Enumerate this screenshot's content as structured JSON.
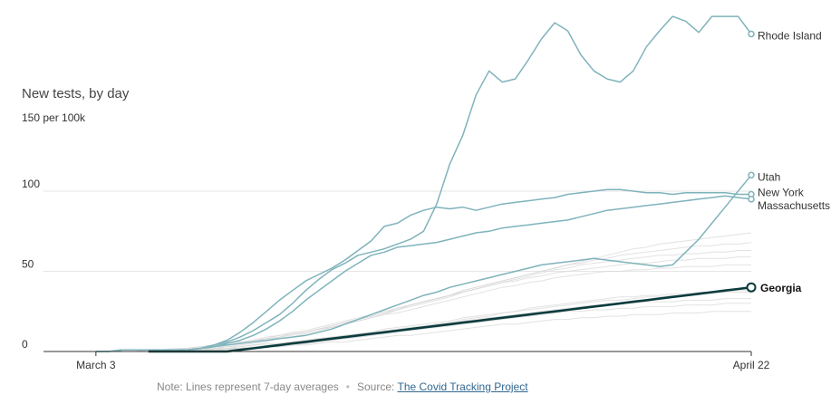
{
  "chart_data": {
    "type": "line",
    "title": "New tests, by day",
    "y_unit": "150 per 100k",
    "ylim": [
      0,
      209
    ],
    "y_ticks": [
      {
        "value": 0,
        "label": "0"
      },
      {
        "value": 50,
        "label": "50"
      },
      {
        "value": 100,
        "label": "100"
      }
    ],
    "x_ticks": [
      {
        "index": 4,
        "label": "March 3"
      },
      {
        "index": 54,
        "label": "April 22"
      }
    ],
    "x_start_index": 0,
    "x_end_index": 54,
    "grid": true,
    "background_series_count": 10,
    "background_series": [
      [
        0,
        0,
        0,
        0,
        0,
        0,
        0,
        0,
        0,
        0,
        0,
        0,
        1,
        1,
        1,
        2,
        2,
        3,
        3,
        4,
        5,
        6,
        7,
        8,
        9,
        10,
        12,
        13,
        14,
        15,
        17,
        18,
        20,
        21,
        22,
        24,
        25,
        27,
        28,
        29,
        30,
        31,
        32,
        33,
        34,
        34,
        35,
        35,
        36,
        36,
        37,
        37,
        37,
        38,
        38
      ],
      [
        0,
        0,
        0,
        0,
        0,
        0,
        0,
        0,
        0,
        1,
        1,
        1,
        2,
        2,
        3,
        3,
        4,
        5,
        5,
        6,
        7,
        8,
        9,
        10,
        11,
        12,
        13,
        14,
        15,
        16,
        17,
        18,
        19,
        20,
        21,
        22,
        23,
        24,
        25,
        26,
        27,
        28,
        29,
        29,
        30,
        30,
        31,
        31,
        31,
        32,
        32,
        32,
        33,
        33,
        33
      ],
      [
        0,
        0,
        0,
        0,
        0,
        0,
        0,
        0,
        0,
        0,
        0,
        1,
        1,
        2,
        3,
        4,
        5,
        6,
        8,
        9,
        11,
        13,
        15,
        17,
        19,
        21,
        23,
        26,
        28,
        30,
        32,
        34,
        37,
        39,
        41,
        43,
        45,
        47,
        49,
        51,
        52,
        54,
        55,
        56,
        57,
        58,
        59,
        60,
        60,
        61,
        61,
        62,
        62,
        63,
        63
      ],
      [
        0,
        0,
        0,
        0,
        0,
        0,
        0,
        0,
        1,
        1,
        2,
        2,
        3,
        4,
        5,
        6,
        7,
        8,
        10,
        11,
        12,
        14,
        15,
        17,
        19,
        21,
        23,
        24,
        26,
        28,
        30,
        32,
        34,
        36,
        38,
        40,
        41,
        43,
        44,
        46,
        47,
        48,
        49,
        50,
        50,
        51,
        51,
        52,
        52,
        53,
        53,
        53,
        54,
        54,
        54
      ],
      [
        0,
        0,
        0,
        0,
        0,
        0,
        0,
        0,
        0,
        0,
        0,
        1,
        1,
        1,
        2,
        2,
        3,
        3,
        4,
        5,
        5,
        6,
        7,
        8,
        9,
        10,
        11,
        12,
        13,
        14,
        15,
        16,
        17,
        18,
        19,
        20,
        21,
        22,
        23,
        24,
        25,
        25,
        26,
        26,
        27,
        27,
        28,
        28,
        28,
        29,
        29,
        29,
        30,
        30,
        30
      ],
      [
        0,
        0,
        0,
        0,
        0,
        0,
        0,
        0,
        0,
        0,
        1,
        1,
        2,
        3,
        4,
        5,
        6,
        7,
        9,
        10,
        12,
        14,
        16,
        18,
        20,
        22,
        24,
        26,
        29,
        31,
        33,
        35,
        38,
        40,
        42,
        44,
        46,
        48,
        50,
        52,
        54,
        56,
        58,
        60,
        62,
        64,
        65,
        67,
        68,
        69,
        70,
        71,
        72,
        73,
        74
      ],
      [
        0,
        0,
        0,
        0,
        0,
        0,
        0,
        0,
        0,
        0,
        0,
        0,
        1,
        1,
        1,
        2,
        2,
        3,
        3,
        4,
        4,
        5,
        6,
        6,
        7,
        8,
        9,
        10,
        10,
        11,
        12,
        13,
        14,
        15,
        16,
        17,
        17,
        18,
        19,
        20,
        20,
        21,
        21,
        22,
        22,
        23,
        23,
        23,
        24,
        24,
        24,
        25,
        25,
        25,
        25
      ],
      [
        0,
        0,
        0,
        0,
        0,
        0,
        0,
        0,
        1,
        1,
        1,
        2,
        3,
        4,
        5,
        6,
        7,
        9,
        10,
        12,
        13,
        15,
        17,
        19,
        21,
        23,
        25,
        27,
        29,
        31,
        33,
        35,
        37,
        39,
        41,
        43,
        44,
        46,
        47,
        49,
        50,
        51,
        52,
        53,
        54,
        55,
        55,
        56,
        57,
        57,
        58,
        58,
        58,
        59,
        59
      ],
      [
        0,
        0,
        0,
        0,
        0,
        0,
        0,
        0,
        0,
        0,
        1,
        1,
        1,
        2,
        2,
        3,
        4,
        4,
        5,
        6,
        7,
        8,
        9,
        10,
        11,
        12,
        14,
        15,
        16,
        17,
        18,
        19,
        21,
        22,
        23,
        24,
        25,
        26,
        27,
        28,
        29,
        30,
        31,
        32,
        32,
        33,
        34,
        34,
        35,
        35,
        36,
        36,
        37,
        37,
        37
      ],
      [
        0,
        0,
        0,
        0,
        0,
        0,
        0,
        0,
        0,
        1,
        1,
        2,
        2,
        3,
        4,
        5,
        6,
        8,
        9,
        11,
        12,
        14,
        16,
        18,
        20,
        22,
        24,
        27,
        29,
        31,
        33,
        35,
        38,
        40,
        42,
        44,
        46,
        48,
        50,
        52,
        54,
        55,
        57,
        58,
        60,
        61,
        62,
        63,
        64,
        65,
        66,
        66,
        67,
        67,
        68
      ]
    ],
    "series": [
      {
        "name": "Rhode Island",
        "color": "#7fb3bb",
        "label_dy": 2,
        "values": [
          null,
          null,
          null,
          null,
          0,
          0,
          1,
          1,
          1,
          1,
          1,
          1,
          2,
          4,
          6,
          9,
          13,
          18,
          23,
          30,
          38,
          45,
          51,
          55,
          60,
          62,
          64,
          67,
          70,
          75,
          92,
          117,
          135,
          160,
          175,
          168,
          170,
          182,
          195,
          205,
          200,
          185,
          175,
          170,
          168,
          175,
          190,
          200,
          209,
          206,
          199,
          209,
          209,
          209,
          198
        ]
      },
      {
        "name": "Utah",
        "color": "#7fb3bb",
        "label_dy": 2,
        "values": [
          null,
          null,
          null,
          null,
          0,
          0,
          1,
          1,
          1,
          1,
          1,
          1,
          2,
          3,
          4,
          5,
          6,
          7,
          8,
          9,
          10,
          12,
          14,
          17,
          20,
          23,
          26,
          29,
          32,
          35,
          37,
          40,
          42,
          44,
          46,
          48,
          50,
          52,
          54,
          55,
          56,
          57,
          58,
          57,
          56,
          55,
          54,
          53,
          54,
          62,
          70,
          80,
          90,
          100,
          110
        ]
      },
      {
        "name": "New York",
        "color": "#7fb3bb",
        "label_dy": -2,
        "values": [
          null,
          null,
          null,
          null,
          0,
          0,
          1,
          1,
          1,
          1,
          1,
          1,
          2,
          4,
          7,
          12,
          18,
          25,
          32,
          38,
          44,
          48,
          52,
          57,
          63,
          69,
          78,
          80,
          85,
          88,
          90,
          89,
          90,
          88,
          90,
          92,
          93,
          94,
          95,
          96,
          98,
          99,
          100,
          101,
          101,
          100,
          99,
          99,
          98,
          99,
          99,
          99,
          99,
          98,
          98
        ]
      },
      {
        "name": "Massachusetts",
        "color": "#7fb3bb",
        "label_dy": 7,
        "values": [
          null,
          null,
          null,
          null,
          0,
          0,
          1,
          1,
          1,
          1,
          1,
          1,
          2,
          3,
          5,
          7,
          10,
          14,
          19,
          25,
          32,
          38,
          44,
          50,
          55,
          60,
          62,
          65,
          66,
          67,
          68,
          70,
          72,
          74,
          75,
          77,
          78,
          79,
          80,
          81,
          82,
          84,
          86,
          88,
          89,
          90,
          91,
          92,
          93,
          94,
          95,
          96,
          97,
          96,
          95
        ]
      },
      {
        "name": "Georgia",
        "color": "#0b3b3d",
        "label_dy": 1,
        "focus": true,
        "values": [
          null,
          null,
          null,
          null,
          null,
          null,
          null,
          null,
          0,
          0,
          0,
          0,
          0,
          0,
          0,
          1,
          2,
          3,
          4,
          5,
          6,
          7,
          8,
          9,
          10,
          11,
          12,
          13,
          14,
          15,
          16,
          17,
          18,
          19,
          20,
          21,
          22,
          23,
          24,
          25,
          26,
          27,
          28,
          29,
          30,
          31,
          32,
          33,
          34,
          35,
          36,
          37,
          38,
          39,
          40
        ]
      }
    ]
  },
  "footer": {
    "note": "Note: Lines represent 7-day averages",
    "separator": "•",
    "source_prefix": "Source: ",
    "source_link": "The Covid Tracking Project"
  }
}
